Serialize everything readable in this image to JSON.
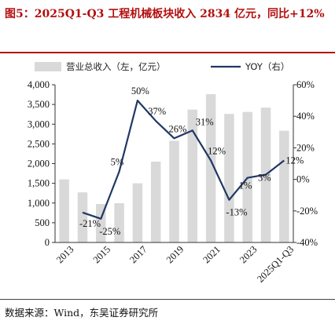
{
  "header": {
    "title": "图5：2025Q1-Q3 工程机械板块收入 2834 亿元，同比+12%"
  },
  "footer": {
    "source": "数据来源：Wind，东吴证券研究所"
  },
  "chart_data": {
    "type": "bar",
    "title": "",
    "categories": [
      "2013",
      "2014",
      "2015",
      "2016",
      "2017",
      "2018",
      "2019",
      "2020",
      "2021",
      "2022",
      "2023",
      "2024",
      "2025Q1-Q3"
    ],
    "x_tick_labels": [
      "2013",
      "2015",
      "2017",
      "2019",
      "2021",
      "2023",
      "2025Q1-Q3"
    ],
    "series": [
      {
        "name": "营业总收入（左，亿元）",
        "type": "bar",
        "axis": "left",
        "color": "#d9d9d9",
        "values": [
          1600,
          1270,
          975,
          995,
          1500,
          2050,
          2580,
          3370,
          3760,
          3260,
          3310,
          3420,
          2834
        ]
      },
      {
        "name": "YOY（右）",
        "type": "line",
        "axis": "right",
        "color": "#1f3864",
        "values": [
          null,
          -21,
          -25,
          5,
          50,
          37,
          26,
          31,
          12,
          -13,
          1,
          3,
          12
        ],
        "labels": [
          null,
          "-21%",
          "-25%",
          "5%",
          "50%",
          "37%",
          "26%",
          "31%",
          "12%",
          "-13%",
          "1%",
          "3%",
          "12%"
        ]
      }
    ],
    "y_left": {
      "min": 0,
      "max": 4000,
      "step": 500,
      "ticks": [
        "0",
        "500",
        "1,000",
        "1,500",
        "2,000",
        "2,500",
        "3,000",
        "3,500",
        "4,000"
      ]
    },
    "y_right": {
      "min": -40,
      "max": 60,
      "step": 20,
      "ticks": [
        "-40%",
        "-20%",
        "0%",
        "20%",
        "40%",
        "60%"
      ]
    },
    "legend": "top",
    "grid": false
  }
}
